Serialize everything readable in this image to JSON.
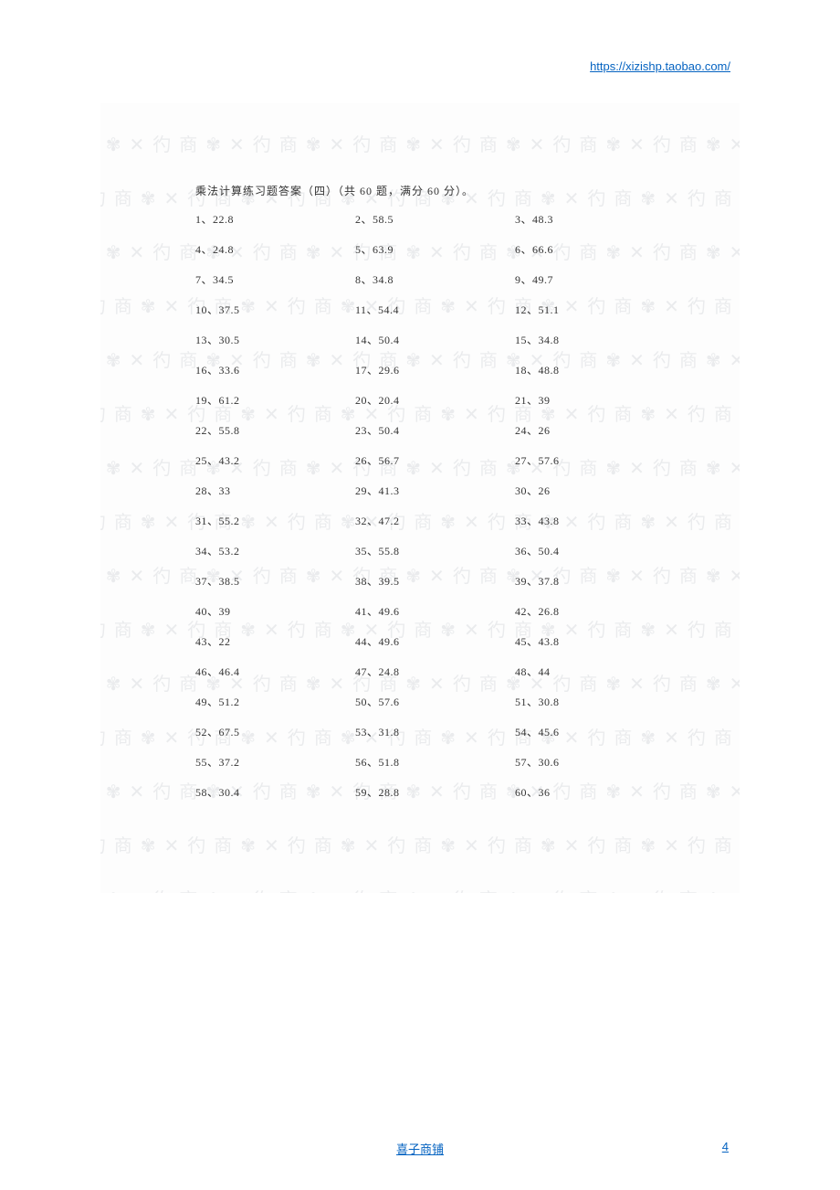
{
  "header": {
    "url": "https://xizishp.taobao.com/"
  },
  "title": "乘法计算练习题答案（四）（共 60 题，满分 60 分）。",
  "answers": [
    {
      "n": "1",
      "v": "22.8"
    },
    {
      "n": "2",
      "v": "58.5"
    },
    {
      "n": "3",
      "v": "48.3"
    },
    {
      "n": "4",
      "v": "24.8"
    },
    {
      "n": "5",
      "v": "63.9"
    },
    {
      "n": "6",
      "v": "66.6"
    },
    {
      "n": "7",
      "v": "34.5"
    },
    {
      "n": "8",
      "v": "34.8"
    },
    {
      "n": "9",
      "v": "49.7"
    },
    {
      "n": "10",
      "v": "37.5"
    },
    {
      "n": "11",
      "v": "54.4"
    },
    {
      "n": "12",
      "v": "51.1"
    },
    {
      "n": "13",
      "v": "30.5"
    },
    {
      "n": "14",
      "v": "50.4"
    },
    {
      "n": "15",
      "v": "34.8"
    },
    {
      "n": "16",
      "v": "33.6"
    },
    {
      "n": "17",
      "v": "29.6"
    },
    {
      "n": "18",
      "v": "48.8"
    },
    {
      "n": "19",
      "v": "61.2"
    },
    {
      "n": "20",
      "v": "20.4"
    },
    {
      "n": "21",
      "v": "39"
    },
    {
      "n": "22",
      "v": "55.8"
    },
    {
      "n": "23",
      "v": "50.4"
    },
    {
      "n": "24",
      "v": "26"
    },
    {
      "n": "25",
      "v": "43.2"
    },
    {
      "n": "26",
      "v": "56.7"
    },
    {
      "n": "27",
      "v": "57.6"
    },
    {
      "n": "28",
      "v": "33"
    },
    {
      "n": "29",
      "v": "41.3"
    },
    {
      "n": "30",
      "v": "26"
    },
    {
      "n": "31",
      "v": "55.2"
    },
    {
      "n": "32",
      "v": "47.2"
    },
    {
      "n": "33",
      "v": "43.8"
    },
    {
      "n": "34",
      "v": "53.2"
    },
    {
      "n": "35",
      "v": "55.8"
    },
    {
      "n": "36",
      "v": "50.4"
    },
    {
      "n": "37",
      "v": "38.5"
    },
    {
      "n": "38",
      "v": "39.5"
    },
    {
      "n": "39",
      "v": "37.8"
    },
    {
      "n": "40",
      "v": "39"
    },
    {
      "n": "41",
      "v": "49.6"
    },
    {
      "n": "42",
      "v": "26.8"
    },
    {
      "n": "43",
      "v": "22"
    },
    {
      "n": "44",
      "v": "49.6"
    },
    {
      "n": "45",
      "v": "43.8"
    },
    {
      "n": "46",
      "v": "46.4"
    },
    {
      "n": "47",
      "v": "24.8"
    },
    {
      "n": "48",
      "v": "44"
    },
    {
      "n": "49",
      "v": "51.2"
    },
    {
      "n": "50",
      "v": "57.6"
    },
    {
      "n": "51",
      "v": "30.8"
    },
    {
      "n": "52",
      "v": "67.5"
    },
    {
      "n": "53",
      "v": "31.8"
    },
    {
      "n": "54",
      "v": "45.6"
    },
    {
      "n": "55",
      "v": "37.2"
    },
    {
      "n": "56",
      "v": "51.8"
    },
    {
      "n": "57",
      "v": "30.6"
    },
    {
      "n": "58",
      "v": "30.4"
    },
    {
      "n": "59",
      "v": "28.8"
    },
    {
      "n": "60",
      "v": "36"
    }
  ],
  "footer": {
    "shop": "喜子商铺",
    "page": "4"
  },
  "watermark": {
    "unit": "✕ 彴 商 ✾ ",
    "repeat": 10,
    "rows": 18
  }
}
